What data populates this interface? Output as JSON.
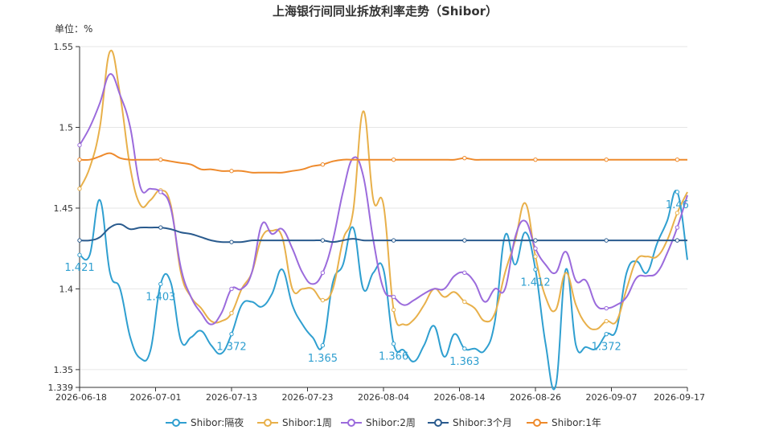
{
  "chart_data": {
    "type": "line",
    "title": "上海银行间同业拆放利率走势（Shibor）",
    "unit_label": "单位：%",
    "x_ticks": [
      "2026-06-18",
      "2026-07-01",
      "2026-07-13",
      "2026-07-23",
      "2026-08-04",
      "2026-08-14",
      "2026-08-26",
      "2026-09-07",
      "2026-09-17"
    ],
    "y_ticks": [
      "1.339",
      "1.35",
      "1.4",
      "1.45",
      "1.5",
      "1.55"
    ],
    "ylim": [
      1.339,
      1.55
    ],
    "grid": true,
    "legend_position": "bottom",
    "series": [
      {
        "name": "Shibor:隔夜",
        "color": "#2f9fd0",
        "values": [
          1.421,
          1.421,
          1.455,
          1.41,
          1.4,
          1.37,
          1.357,
          1.362,
          1.403,
          1.404,
          1.368,
          1.37,
          1.374,
          1.365,
          1.36,
          1.372,
          1.39,
          1.392,
          1.389,
          1.397,
          1.412,
          1.39,
          1.378,
          1.37,
          1.365,
          1.404,
          1.415,
          1.438,
          1.4,
          1.41,
          1.412,
          1.366,
          1.362,
          1.355,
          1.365,
          1.377,
          1.358,
          1.372,
          1.363,
          1.363,
          1.362,
          1.38,
          1.433,
          1.415,
          1.435,
          1.412,
          1.366,
          1.34,
          1.412,
          1.365,
          1.364,
          1.363,
          1.372,
          1.375,
          1.41,
          1.417,
          1.41,
          1.428,
          1.442,
          1.46,
          1.418
        ],
        "labels": [
          {
            "i": 0,
            "text": "1.421"
          },
          {
            "i": 8,
            "text": "1.403"
          },
          {
            "i": 15,
            "text": "1.372"
          },
          {
            "i": 24,
            "text": "1.365"
          },
          {
            "i": 31,
            "text": "1.366"
          },
          {
            "i": 38,
            "text": "1.363"
          },
          {
            "i": 45,
            "text": "1.412"
          },
          {
            "i": 52,
            "text": "1.372"
          },
          {
            "i": 59,
            "text": "1.46"
          }
        ]
      },
      {
        "name": "Shibor:1周",
        "color": "#e8b04a",
        "values": [
          1.462,
          1.475,
          1.5,
          1.547,
          1.52,
          1.475,
          1.452,
          1.455,
          1.461,
          1.452,
          1.41,
          1.395,
          1.388,
          1.38,
          1.38,
          1.385,
          1.4,
          1.41,
          1.432,
          1.436,
          1.432,
          1.4,
          1.4,
          1.4,
          1.393,
          1.4,
          1.43,
          1.448,
          1.51,
          1.455,
          1.452,
          1.387,
          1.378,
          1.381,
          1.39,
          1.4,
          1.395,
          1.398,
          1.392,
          1.388,
          1.38,
          1.385,
          1.41,
          1.43,
          1.453,
          1.42,
          1.395,
          1.387,
          1.41,
          1.39,
          1.378,
          1.375,
          1.38,
          1.38,
          1.4,
          1.418,
          1.42,
          1.42,
          1.43,
          1.447,
          1.46
        ]
      },
      {
        "name": "Shibor:2周",
        "color": "#9b6bdc",
        "values": [
          1.489,
          1.5,
          1.515,
          1.533,
          1.52,
          1.5,
          1.463,
          1.462,
          1.46,
          1.45,
          1.413,
          1.395,
          1.385,
          1.378,
          1.385,
          1.4,
          1.4,
          1.41,
          1.44,
          1.434,
          1.437,
          1.425,
          1.41,
          1.403,
          1.41,
          1.43,
          1.46,
          1.481,
          1.47,
          1.43,
          1.4,
          1.395,
          1.39,
          1.393,
          1.397,
          1.4,
          1.4,
          1.408,
          1.41,
          1.404,
          1.392,
          1.4,
          1.4,
          1.432,
          1.442,
          1.425,
          1.415,
          1.41,
          1.423,
          1.405,
          1.405,
          1.39,
          1.388,
          1.39,
          1.395,
          1.407,
          1.408,
          1.41,
          1.422,
          1.438,
          1.458
        ]
      },
      {
        "name": "Shibor:3个月",
        "color": "#2a5b8e",
        "values": [
          1.43,
          1.43,
          1.432,
          1.438,
          1.44,
          1.437,
          1.438,
          1.438,
          1.438,
          1.437,
          1.435,
          1.434,
          1.432,
          1.43,
          1.429,
          1.429,
          1.429,
          1.43,
          1.43,
          1.43,
          1.43,
          1.43,
          1.43,
          1.43,
          1.43,
          1.429,
          1.43,
          1.431,
          1.43,
          1.43,
          1.43,
          1.43,
          1.43,
          1.43,
          1.43,
          1.43,
          1.43,
          1.43,
          1.43,
          1.43,
          1.43,
          1.43,
          1.43,
          1.43,
          1.43,
          1.43,
          1.43,
          1.43,
          1.43,
          1.43,
          1.43,
          1.43,
          1.43,
          1.43,
          1.43,
          1.43,
          1.43,
          1.43,
          1.43,
          1.43,
          1.43
        ]
      },
      {
        "name": "Shibor:1年",
        "color": "#ee8a2c",
        "values": [
          1.48,
          1.48,
          1.482,
          1.484,
          1.481,
          1.48,
          1.48,
          1.48,
          1.48,
          1.479,
          1.478,
          1.477,
          1.474,
          1.474,
          1.473,
          1.473,
          1.473,
          1.472,
          1.472,
          1.472,
          1.472,
          1.473,
          1.474,
          1.476,
          1.477,
          1.479,
          1.48,
          1.48,
          1.48,
          1.48,
          1.48,
          1.48,
          1.48,
          1.48,
          1.48,
          1.48,
          1.48,
          1.48,
          1.481,
          1.48,
          1.48,
          1.48,
          1.48,
          1.48,
          1.48,
          1.48,
          1.48,
          1.48,
          1.48,
          1.48,
          1.48,
          1.48,
          1.48,
          1.48,
          1.48,
          1.48,
          1.48,
          1.48,
          1.48,
          1.48,
          1.48
        ]
      }
    ]
  }
}
